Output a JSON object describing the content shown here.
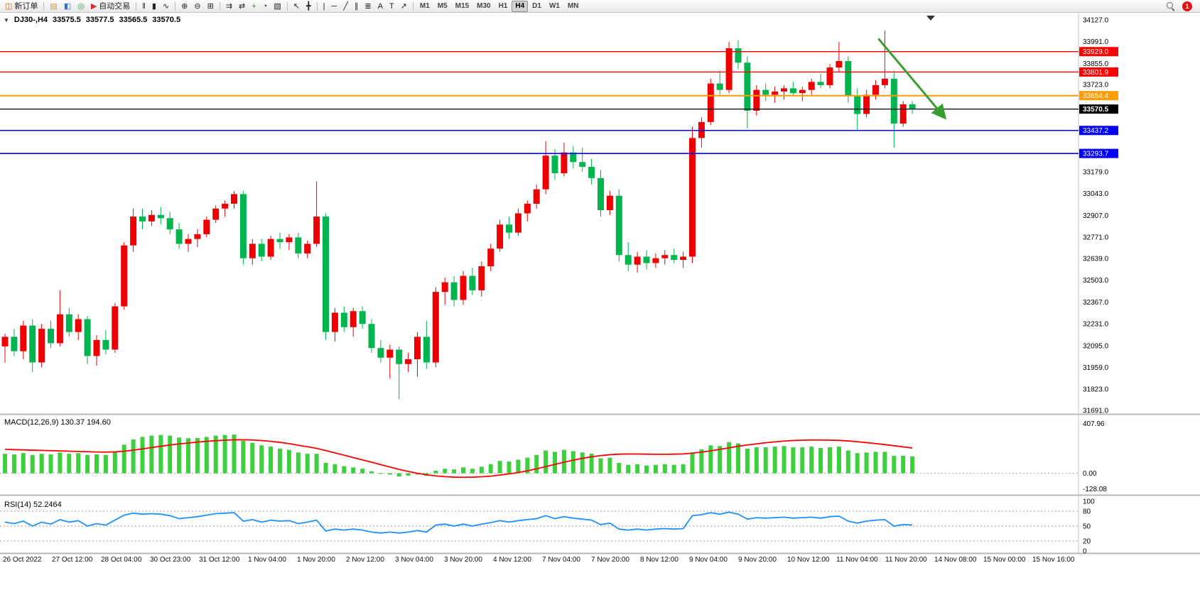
{
  "toolbar": {
    "items": [
      {
        "name": "new-order-button",
        "glyph": "◫",
        "glyph_color": "#b5651d",
        "label": "新订单"
      },
      {
        "sep": true
      },
      {
        "name": "profiles-icon",
        "glyph": "▤",
        "glyph_color": "#c8a235"
      },
      {
        "name": "market-watch-icon",
        "glyph": "◧",
        "glyph_color": "#3b6fd4"
      },
      {
        "name": "navigator-icon",
        "glyph": "◎",
        "glyph_color": "#2f9e4a"
      },
      {
        "name": "auto-trading-button",
        "glyph": "▶",
        "glyph_color": "#d42f2f",
        "label": "自动交易"
      },
      {
        "sep": true
      },
      {
        "name": "bar-chart-icon",
        "glyph": "‖"
      },
      {
        "name": "candlestick-chart-icon",
        "glyph": "▮"
      },
      {
        "name": "line-chart-icon",
        "glyph": "∿"
      },
      {
        "sep": true
      },
      {
        "name": "zoom-in-icon",
        "glyph": "⊕"
      },
      {
        "name": "zoom-out-icon",
        "glyph": "⊖"
      },
      {
        "name": "tile-windows-icon",
        "glyph": "⊞"
      },
      {
        "sep": true
      },
      {
        "name": "auto-scroll-icon",
        "glyph": "⇉"
      },
      {
        "name": "chart-shift-icon",
        "glyph": "⇄"
      },
      {
        "name": "indicators-icon",
        "glyph": "+",
        "glyph_color": "#1a9e1a"
      },
      {
        "name": "periods-icon",
        "glyph": "◔"
      },
      {
        "name": "templates-icon",
        "glyph": "▨"
      },
      {
        "sep": true
      },
      {
        "name": "cursor-icon",
        "glyph": "↖"
      },
      {
        "name": "crosshair-icon",
        "glyph": "╋"
      },
      {
        "sep": true
      },
      {
        "name": "vertical-line-icon",
        "glyph": "|"
      },
      {
        "name": "horizontal-line-icon",
        "glyph": "─"
      },
      {
        "name": "trendline-icon",
        "glyph": "╱"
      },
      {
        "name": "channel-icon",
        "glyph": "∥"
      },
      {
        "name": "fibonacci-icon",
        "glyph": "≣"
      },
      {
        "name": "text-icon",
        "glyph": "A"
      },
      {
        "name": "text-label-icon",
        "glyph": "T"
      },
      {
        "name": "arrows-icon",
        "glyph": "↗"
      },
      {
        "sep": true
      }
    ],
    "timeframes": {
      "items": [
        "M1",
        "M5",
        "M15",
        "M30",
        "H1",
        "H4",
        "D1",
        "W1",
        "MN"
      ],
      "active": "H4"
    },
    "right": {
      "notification_count": "1"
    }
  },
  "chart_header": {
    "dropdown_icon": "▼",
    "symbol": "DJ30-,H4",
    "open": "33575.5",
    "high": "33577.5",
    "low": "33565.5",
    "close": "33570.5"
  },
  "chart_data": [
    {
      "type": "candlestick",
      "symbol": "DJ30-,H4",
      "timeframe": "H4",
      "ylim": [
        31691,
        34127
      ],
      "y_ticks": [
        34127.0,
        33991.0,
        33855.0,
        33723.0,
        33179.0,
        33043.0,
        32907.0,
        32771.0,
        32639.0,
        32503.0,
        32367.0,
        32231.0,
        32095.0,
        31959.0,
        31823.0,
        31691.0
      ],
      "x_labels": [
        "26 Oct 2022",
        "27 Oct 12:00",
        "28 Oct 04:00",
        "30 Oct 23:00",
        "31 Oct 12:00",
        "1 Nov 04:00",
        "1 Nov 20:00",
        "2 Nov 12:00",
        "3 Nov 04:00",
        "3 Nov 20:00",
        "4 Nov 12:00",
        "7 Nov 04:00",
        "7 Nov 20:00",
        "8 Nov 12:00",
        "9 Nov 04:00",
        "9 Nov 20:00",
        "10 Nov 12:00",
        "11 Nov 04:00",
        "11 Nov 20:00",
        "14 Nov 08:00",
        "15 Nov 00:00",
        "15 Nov 16:00"
      ],
      "up_color": "#ee0000",
      "down_color": "#00b44e",
      "hlines": [
        {
          "price": 33929.0,
          "label": "33929.0",
          "color": "#ff0000",
          "width": 1.4
        },
        {
          "price": 33801.9,
          "label": "33801.9",
          "color": "#ff0000",
          "width": 1.4
        },
        {
          "price": 33654.4,
          "label": "33654.4",
          "color": "#ff9c00",
          "width": 2
        },
        {
          "price": 33437.2,
          "label": "33437.2",
          "color": "#0000ff",
          "width": 1.6
        },
        {
          "price": 33293.7,
          "label": "33293.7",
          "color": "#0000ff",
          "width": 1.6
        }
      ],
      "price_line": {
        "price": 33570.5,
        "label": "33570.5",
        "color": "#000000"
      },
      "annotation_arrow": {
        "from": {
          "index": 95.3,
          "price": 34010
        },
        "to": {
          "index": 102.5,
          "price": 33520
        },
        "color": "#3a9e2e"
      },
      "ohlc": [
        [
          32090,
          32170,
          31990,
          32150
        ],
        [
          32150,
          32200,
          32030,
          32060
        ],
        [
          32060,
          32250,
          32010,
          32220
        ],
        [
          32220,
          32260,
          31930,
          31990
        ],
        [
          31990,
          32230,
          31960,
          32200
        ],
        [
          32200,
          32250,
          32080,
          32110
        ],
        [
          32110,
          32440,
          32090,
          32290
        ],
        [
          32290,
          32330,
          32150,
          32180
        ],
        [
          32180,
          32290,
          32130,
          32260
        ],
        [
          32260,
          32280,
          31980,
          32030
        ],
        [
          32030,
          32160,
          31970,
          32130
        ],
        [
          32130,
          32190,
          32040,
          32070
        ],
        [
          32070,
          32360,
          32050,
          32340
        ],
        [
          32340,
          32740,
          32320,
          32720
        ],
        [
          32720,
          32950,
          32680,
          32900
        ],
        [
          32900,
          32950,
          32820,
          32870
        ],
        [
          32870,
          32940,
          32840,
          32910
        ],
        [
          32910,
          32960,
          32850,
          32890
        ],
        [
          32890,
          32930,
          32790,
          32820
        ],
        [
          32820,
          32860,
          32700,
          32730
        ],
        [
          32730,
          32790,
          32680,
          32760
        ],
        [
          32760,
          32820,
          32710,
          32790
        ],
        [
          32790,
          32900,
          32770,
          32880
        ],
        [
          32880,
          32970,
          32860,
          32950
        ],
        [
          32950,
          33000,
          32900,
          32980
        ],
        [
          32980,
          33060,
          32950,
          33040
        ],
        [
          33040,
          33060,
          32600,
          32640
        ],
        [
          32640,
          32760,
          32600,
          32730
        ],
        [
          32730,
          32760,
          32620,
          32650
        ],
        [
          32650,
          32780,
          32630,
          32760
        ],
        [
          32760,
          32800,
          32700,
          32740
        ],
        [
          32740,
          32790,
          32690,
          32770
        ],
        [
          32770,
          32800,
          32640,
          32670
        ],
        [
          32670,
          32750,
          32640,
          32730
        ],
        [
          32730,
          33120,
          32710,
          32900
        ],
        [
          32900,
          32920,
          32130,
          32180
        ],
        [
          32180,
          32330,
          32120,
          32300
        ],
        [
          32300,
          32340,
          32180,
          32210
        ],
        [
          32210,
          32330,
          32150,
          32310
        ],
        [
          32310,
          32340,
          32200,
          32230
        ],
        [
          32230,
          32260,
          32050,
          32080
        ],
        [
          32080,
          32130,
          31990,
          32020
        ],
        [
          32020,
          32100,
          31890,
          32070
        ],
        [
          32070,
          32090,
          31760,
          31980
        ],
        [
          31980,
          32050,
          31930,
          32010
        ],
        [
          32010,
          32180,
          31900,
          32150
        ],
        [
          32150,
          32250,
          31950,
          31990
        ],
        [
          31990,
          32460,
          31960,
          32430
        ],
        [
          32430,
          32520,
          32350,
          32490
        ],
        [
          32490,
          32530,
          32340,
          32380
        ],
        [
          32380,
          32560,
          32350,
          32530
        ],
        [
          32530,
          32580,
          32410,
          32440
        ],
        [
          32440,
          32620,
          32400,
          32590
        ],
        [
          32590,
          32730,
          32560,
          32700
        ],
        [
          32700,
          32880,
          32680,
          32850
        ],
        [
          32850,
          32900,
          32760,
          32800
        ],
        [
          32800,
          32950,
          32780,
          32920
        ],
        [
          32920,
          33000,
          32870,
          32980
        ],
        [
          32980,
          33100,
          32950,
          33070
        ],
        [
          33070,
          33370,
          33040,
          33280
        ],
        [
          33280,
          33320,
          33130,
          33170
        ],
        [
          33170,
          33360,
          33150,
          33300
        ],
        [
          33300,
          33340,
          33200,
          33240
        ],
        [
          33240,
          33330,
          33180,
          33210
        ],
        [
          33210,
          33260,
          33100,
          33140
        ],
        [
          33140,
          33190,
          32900,
          32940
        ],
        [
          32940,
          33060,
          32910,
          33030
        ],
        [
          33030,
          33070,
          32620,
          32660
        ],
        [
          32660,
          32740,
          32560,
          32600
        ],
        [
          32600,
          32680,
          32550,
          32650
        ],
        [
          32650,
          32690,
          32570,
          32610
        ],
        [
          32610,
          32670,
          32580,
          32640
        ],
        [
          32640,
          32690,
          32600,
          32660
        ],
        [
          32660,
          32700,
          32610,
          32630
        ],
        [
          32630,
          32680,
          32580,
          32650
        ],
        [
          32650,
          33460,
          32610,
          33390
        ],
        [
          33390,
          33520,
          33330,
          33490
        ],
        [
          33490,
          33760,
          33470,
          33730
        ],
        [
          33730,
          33810,
          33650,
          33690
        ],
        [
          33690,
          33990,
          33670,
          33950
        ],
        [
          33950,
          34000,
          33820,
          33860
        ],
        [
          33860,
          33900,
          33450,
          33560
        ],
        [
          33560,
          33720,
          33530,
          33690
        ],
        [
          33690,
          33730,
          33620,
          33660
        ],
        [
          33660,
          33710,
          33610,
          33680
        ],
        [
          33680,
          33720,
          33630,
          33700
        ],
        [
          33700,
          33740,
          33650,
          33670
        ],
        [
          33670,
          33710,
          33620,
          33690
        ],
        [
          33690,
          33760,
          33660,
          33740
        ],
        [
          33740,
          33790,
          33700,
          33720
        ],
        [
          33720,
          33850,
          33700,
          33830
        ],
        [
          33830,
          33990,
          33800,
          33870
        ],
        [
          33870,
          33900,
          33610,
          33650
        ],
        [
          33650,
          33700,
          33440,
          33540
        ],
        [
          33540,
          33690,
          33520,
          33660
        ],
        [
          33660,
          33750,
          33630,
          33720
        ],
        [
          33720,
          34060,
          33700,
          33760
        ],
        [
          33760,
          33810,
          33330,
          33480
        ],
        [
          33480,
          33620,
          33460,
          33600
        ],
        [
          33600,
          33620,
          33540,
          33570
        ]
      ]
    },
    {
      "type": "macd",
      "label": "MACD(12,26,9)",
      "values_label": [
        "130.37",
        "194.60"
      ],
      "ylim": [
        -128.08,
        407.96
      ],
      "y_ticks": [
        {
          "v": 407.96,
          "label": "407.96"
        },
        {
          "v": 0,
          "label": "0.00"
        },
        {
          "v": -128.08,
          "label": "-128.08"
        }
      ],
      "bar_color": "#3ecf3e",
      "signal_color": "#ff0000",
      "histogram": [
        150,
        145,
        155,
        140,
        150,
        145,
        160,
        150,
        155,
        140,
        145,
        140,
        170,
        220,
        260,
        280,
        290,
        295,
        290,
        275,
        270,
        272,
        280,
        290,
        295,
        298,
        250,
        235,
        215,
        205,
        190,
        180,
        160,
        150,
        150,
        80,
        70,
        55,
        45,
        35,
        15,
        -5,
        -10,
        -25,
        -18,
        -10,
        -20,
        20,
        35,
        30,
        45,
        35,
        50,
        70,
        95,
        90,
        105,
        120,
        140,
        175,
        165,
        180,
        170,
        160,
        150,
        115,
        120,
        80,
        65,
        70,
        60,
        65,
        70,
        65,
        70,
        160,
        185,
        215,
        210,
        240,
        230,
        190,
        200,
        200,
        205,
        210,
        200,
        200,
        205,
        195,
        200,
        205,
        175,
        155,
        160,
        165,
        165,
        135,
        135,
        130
      ],
      "signal": [
        185,
        182,
        180,
        178,
        176,
        174,
        172,
        170,
        168,
        166,
        164,
        163,
        165,
        170,
        178,
        188,
        198,
        208,
        218,
        226,
        233,
        240,
        246,
        251,
        255,
        258,
        258,
        256,
        252,
        246,
        238,
        228,
        216,
        204,
        192,
        175,
        157,
        139,
        121,
        103,
        85,
        66,
        48,
        30,
        14,
        0,
        -12,
        -20,
        -26,
        -30,
        -31,
        -30,
        -27,
        -22,
        -14,
        -5,
        6,
        19,
        34,
        51,
        68,
        85,
        101,
        115,
        127,
        136,
        143,
        147,
        148,
        148,
        147,
        146,
        146,
        147,
        149,
        155,
        163,
        173,
        184,
        196,
        208,
        218,
        227,
        235,
        242,
        248,
        252,
        255,
        256,
        256,
        255,
        253,
        249,
        243,
        236,
        229,
        221,
        212,
        203,
        195
      ]
    },
    {
      "type": "rsi",
      "label": "RSI(14)",
      "value_label": "52.2464",
      "ylim": [
        0,
        100
      ],
      "y_ticks": [
        100,
        80,
        50,
        20,
        0
      ],
      "levels": [
        80,
        50,
        20
      ],
      "line_color": "#1e90ff",
      "values": [
        58,
        55,
        60,
        50,
        58,
        54,
        63,
        58,
        61,
        50,
        55,
        52,
        62,
        72,
        76,
        74,
        75,
        74,
        71,
        65,
        67,
        69,
        72,
        75,
        76,
        77,
        60,
        63,
        58,
        62,
        60,
        61,
        55,
        58,
        62,
        40,
        44,
        42,
        44,
        42,
        38,
        36,
        38,
        36,
        38,
        41,
        38,
        52,
        54,
        50,
        54,
        50,
        54,
        57,
        61,
        58,
        61,
        63,
        65,
        71,
        65,
        69,
        66,
        64,
        62,
        53,
        56,
        44,
        42,
        44,
        42,
        44,
        45,
        44,
        45,
        71,
        73,
        77,
        74,
        78,
        74,
        64,
        67,
        66,
        67,
        68,
        66,
        67,
        68,
        66,
        69,
        70,
        60,
        56,
        60,
        62,
        63,
        50,
        53,
        52.2
      ]
    }
  ]
}
